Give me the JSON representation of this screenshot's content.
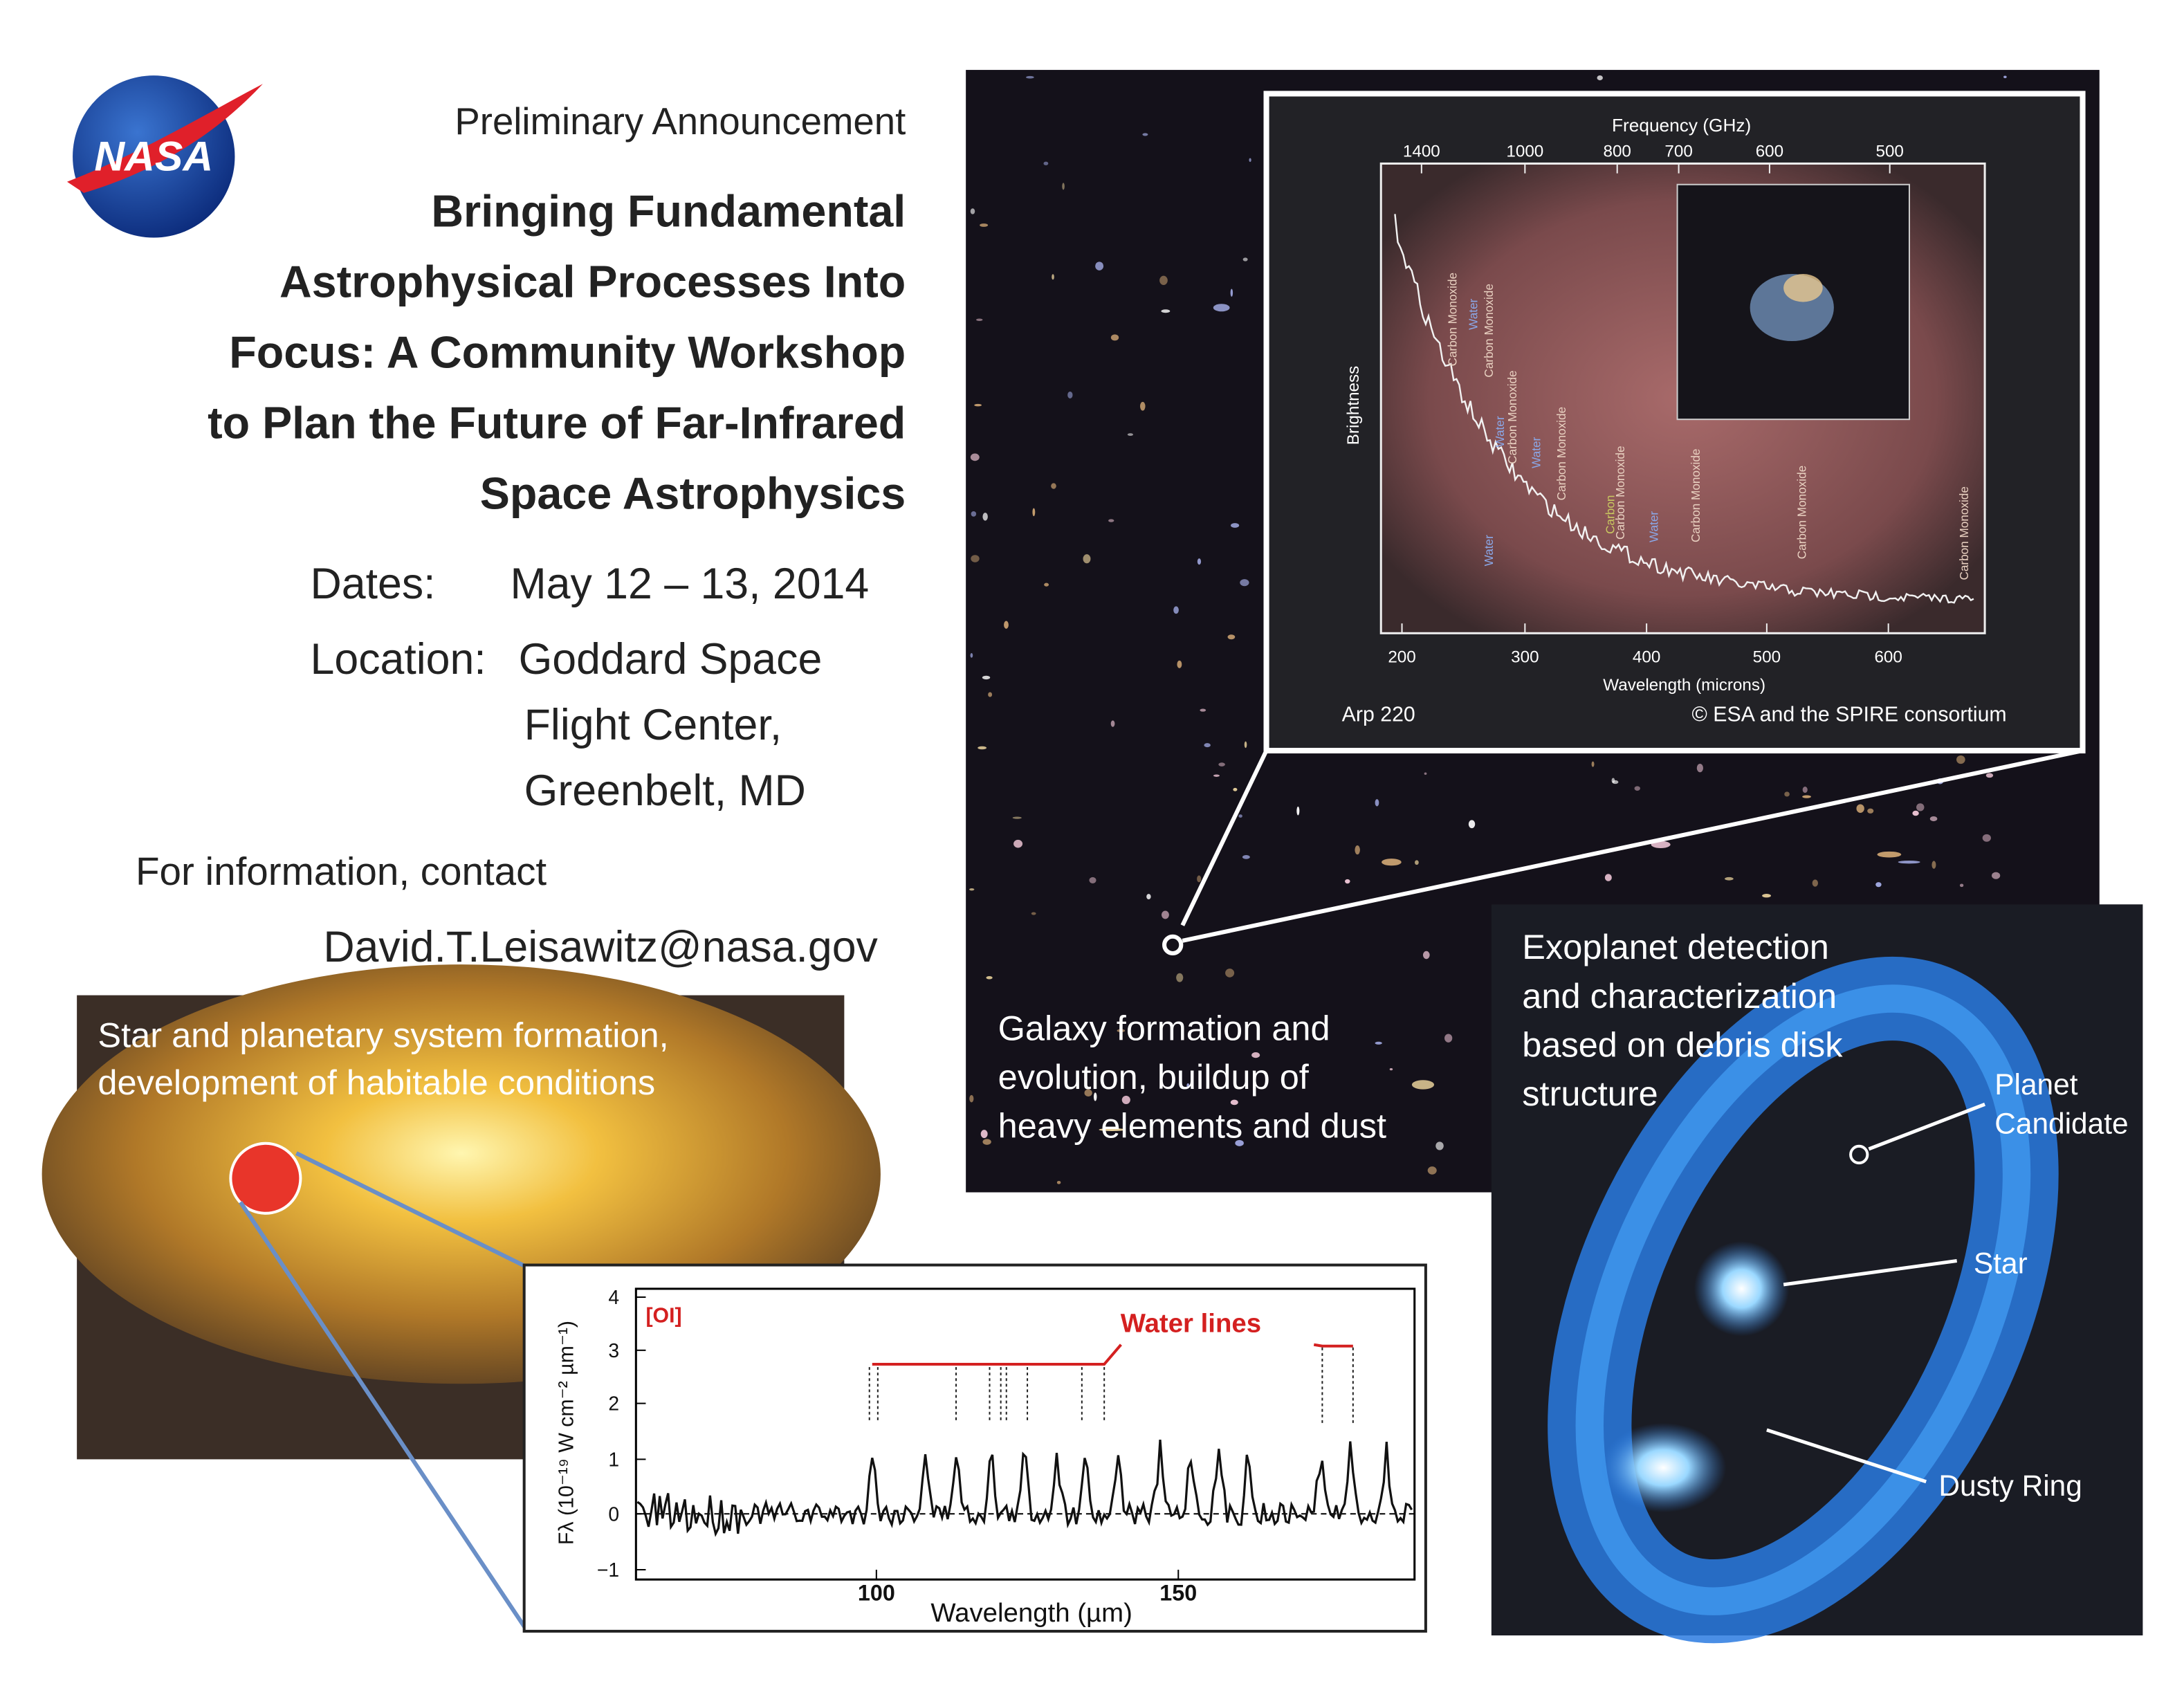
{
  "header": {
    "logo": "NASA",
    "kicker": "Preliminary Announcement",
    "title_lines": [
      "Bringing Fundamental",
      "Astrophysical Processes Into",
      "Focus: A Community Workshop",
      "to Plan the Future of Far-Infrared",
      "Space Astrophysics"
    ]
  },
  "details": {
    "dates_label": "Dates:",
    "dates": "May 12 – 13, 2014",
    "location_label": "Location:",
    "location_lines": [
      "Goddard Space",
      "Flight Center,",
      "Greenbelt, MD"
    ],
    "contact_label": "For information, contact",
    "email": "David.T.Leisawitz@nasa.gov"
  },
  "galaxy_panel": {
    "caption_lines": [
      "Galaxy formation and",
      "evolution, buildup of",
      "heavy elements and dust"
    ]
  },
  "spire_inset": {
    "top_axis_label": "Frequency (GHz)",
    "top_ticks": [
      "1400",
      "1000",
      "800",
      "700",
      "600",
      "500"
    ],
    "y_label": "Brightness",
    "bottom_ticks": [
      "200",
      "300",
      "400",
      "500",
      "600"
    ],
    "x_label": "Wavelength (microns)",
    "object": "Arp 220",
    "credit": "© ESA and the SPIRE consortium",
    "line_labels": [
      "Water",
      "Carbon Monoxide",
      "Water",
      "Carbon Monoxide",
      "Water",
      "Carbon Monoxide",
      "Water",
      "Carbon Monoxide",
      "Carbon",
      "Carbon Monoxide",
      "Water",
      "Carbon Monoxide",
      "Carbon Monoxide",
      "Carbon Monoxide"
    ]
  },
  "star_panel": {
    "caption_lines": [
      "Star and planetary system formation,",
      "development of habitable conditions"
    ]
  },
  "water_inset": {
    "y_label": "Fλ (10⁻¹⁹ W cm⁻² µm⁻¹)",
    "y_ticks": [
      "4",
      "3",
      "2",
      "1",
      "0",
      "−1"
    ],
    "x_ticks": [
      "100",
      "150"
    ],
    "x_label": "Wavelength (µm)",
    "oi_label": "[OI]",
    "water_label": "Water lines"
  },
  "exoplanet_panel": {
    "caption_lines": [
      "Exoplanet detection",
      "and characterization",
      "based on debris disk",
      "structure"
    ],
    "planet_label_lines": [
      "Planet",
      "Candidate"
    ],
    "star_label": "Star",
    "ring_label": "Dusty Ring"
  }
}
